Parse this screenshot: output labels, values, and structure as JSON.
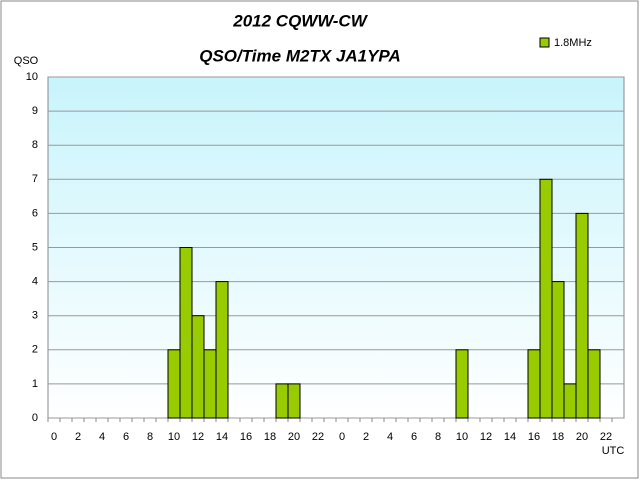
{
  "chart_data": {
    "type": "bar",
    "title": "2012  CQWW-CW",
    "subtitle": "QSO/Time  M2TX JA1YPA",
    "y_label": "QSO",
    "x_label": "UTC",
    "categories": [
      "0",
      null,
      "2",
      null,
      "4",
      null,
      "6",
      null,
      "8",
      null,
      "10",
      null,
      "12",
      null,
      "14",
      null,
      "16",
      null,
      "18",
      null,
      "20",
      null,
      "22",
      null,
      "0",
      null,
      "2",
      null,
      "4",
      null,
      "6",
      null,
      "8",
      null,
      "10",
      null,
      "12",
      null,
      "14",
      null,
      "16",
      null,
      "18",
      null,
      "20",
      null,
      "22",
      null
    ],
    "series": [
      {
        "name": "1.8MHz",
        "color": "#99cc00",
        "values": [
          0,
          0,
          0,
          0,
          0,
          0,
          0,
          0,
          0,
          0,
          2,
          5,
          3,
          2,
          4,
          0,
          0,
          0,
          0,
          1,
          1,
          0,
          0,
          0,
          0,
          0,
          0,
          0,
          0,
          0,
          0,
          0,
          0,
          0,
          2,
          0,
          0,
          0,
          0,
          0,
          2,
          7,
          4,
          1,
          6,
          2,
          0,
          0
        ]
      }
    ],
    "ylim": [
      0,
      10
    ],
    "yticks": [
      0,
      1,
      2,
      3,
      4,
      5,
      6,
      7,
      8,
      9,
      10
    ],
    "grid": true
  }
}
